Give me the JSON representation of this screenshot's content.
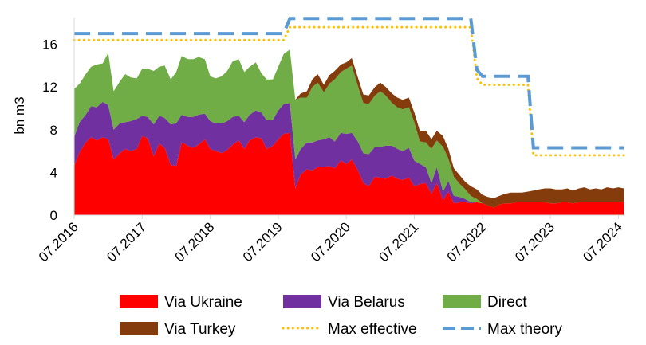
{
  "chart_data": {
    "type": "area",
    "title": "",
    "xlabel": "",
    "ylabel": "bn m3",
    "ylim": [
      0,
      18.5
    ],
    "yticks": [
      0,
      4,
      8,
      12,
      16
    ],
    "xlim": [
      2016.5,
      2024.6
    ],
    "xticks": [
      {
        "value": 2016.5,
        "label": "07.2016"
      },
      {
        "value": 2017.5,
        "label": "07.2017"
      },
      {
        "value": 2018.5,
        "label": "07.2018"
      },
      {
        "value": 2019.5,
        "label": "07.2019"
      },
      {
        "value": 2020.5,
        "label": "07.2020"
      },
      {
        "value": 2021.5,
        "label": "07.2021"
      },
      {
        "value": 2022.5,
        "label": "07.2022"
      },
      {
        "value": 2023.5,
        "label": "07.2023"
      },
      {
        "value": 2024.5,
        "label": "07.2024"
      }
    ],
    "grid": false,
    "legend_position": "bottom",
    "x": [
      2016.5,
      2016.58,
      2016.67,
      2016.75,
      2016.83,
      2016.92,
      2017.0,
      2017.08,
      2017.17,
      2017.25,
      2017.33,
      2017.42,
      2017.5,
      2017.58,
      2017.67,
      2017.75,
      2017.83,
      2017.92,
      2018.0,
      2018.08,
      2018.17,
      2018.25,
      2018.33,
      2018.42,
      2018.5,
      2018.58,
      2018.67,
      2018.75,
      2018.83,
      2018.92,
      2019.0,
      2019.08,
      2019.17,
      2019.25,
      2019.33,
      2019.42,
      2019.5,
      2019.58,
      2019.67,
      2019.75,
      2019.83,
      2019.92,
      2020.0,
      2020.08,
      2020.17,
      2020.25,
      2020.33,
      2020.42,
      2020.5,
      2020.58,
      2020.67,
      2020.75,
      2020.83,
      2020.92,
      2021.0,
      2021.08,
      2021.17,
      2021.25,
      2021.33,
      2021.42,
      2021.5,
      2021.58,
      2021.67,
      2021.75,
      2021.83,
      2021.92,
      2022.0,
      2022.08,
      2022.17,
      2022.25,
      2022.33,
      2022.42,
      2022.5,
      2022.58,
      2022.67,
      2022.75,
      2022.83,
      2022.92,
      2023.0,
      2023.08,
      2023.17,
      2023.25,
      2023.33,
      2023.42,
      2023.5,
      2023.58,
      2023.67,
      2023.75,
      2023.83,
      2023.92,
      2024.0,
      2024.08,
      2024.17,
      2024.25,
      2024.33,
      2024.42,
      2024.5,
      2024.58
    ],
    "series": [
      {
        "name": "Via Ukraine",
        "color": "#ff0000",
        "values": [
          4.6,
          5.9,
          6.8,
          7.3,
          7.0,
          7.3,
          7.1,
          5.2,
          5.8,
          6.2,
          6.0,
          6.2,
          7.4,
          7.2,
          5.5,
          6.7,
          6.3,
          4.7,
          4.6,
          6.8,
          6.5,
          6.3,
          6.6,
          7.1,
          6.2,
          6.0,
          5.8,
          6.1,
          6.6,
          7.0,
          6.2,
          7.0,
          7.3,
          7.2,
          6.2,
          6.5,
          7.1,
          7.6,
          7.7,
          2.5,
          3.8,
          4.3,
          4.2,
          4.5,
          4.5,
          4.6,
          4.4,
          5.1,
          4.8,
          5.2,
          4.2,
          3.0,
          2.7,
          3.6,
          3.5,
          3.4,
          3.7,
          3.4,
          3.3,
          3.5,
          2.7,
          2.9,
          3.0,
          2.0,
          3.0,
          1.4,
          2.2,
          1.1,
          1.2,
          1.2,
          1.1,
          1.2,
          1.1,
          0.9,
          0.7,
          1.0,
          1.1,
          1.1,
          1.2,
          1.2,
          1.2,
          1.2,
          1.2,
          1.2,
          1.1,
          1.1,
          1.2,
          1.2,
          1.1,
          1.2,
          1.2,
          1.2,
          1.2,
          1.2,
          1.2,
          1.2,
          1.2,
          1.2
        ]
      },
      {
        "name": "Via Belarus",
        "color": "#7030a0",
        "values": [
          2.7,
          2.8,
          2.6,
          2.9,
          3.1,
          3.3,
          3.2,
          2.8,
          2.8,
          2.5,
          2.8,
          2.8,
          1.9,
          2.0,
          3.0,
          2.6,
          2.8,
          3.8,
          4.0,
          2.6,
          2.7,
          2.9,
          2.8,
          2.4,
          2.6,
          2.6,
          2.8,
          2.7,
          2.6,
          2.3,
          2.5,
          2.4,
          2.5,
          2.4,
          2.7,
          2.4,
          2.7,
          2.8,
          2.8,
          2.7,
          2.4,
          2.5,
          2.6,
          2.5,
          2.6,
          2.7,
          2.5,
          2.6,
          2.8,
          2.5,
          2.7,
          2.8,
          3.0,
          2.8,
          2.9,
          3.1,
          2.8,
          2.8,
          2.7,
          2.8,
          2.4,
          1.9,
          1.5,
          1.0,
          1.5,
          0.8,
          1.0,
          0.7,
          0.5,
          0.3,
          0.1,
          0.0,
          0.0,
          0.0,
          0.0,
          0.0,
          0.0,
          0.0,
          0.0,
          0.0,
          0.0,
          0.0,
          0.0,
          0.0,
          0.0,
          0.0,
          0.0,
          0.0,
          0.0,
          0.0,
          0.0,
          0.0,
          0.0,
          0.0,
          0.0,
          0.0,
          0.0,
          0.0
        ]
      },
      {
        "name": "Direct",
        "color": "#70ad47",
        "values": [
          4.5,
          3.6,
          3.8,
          3.7,
          4.0,
          3.6,
          4.9,
          3.6,
          3.9,
          4.5,
          4.1,
          3.8,
          4.4,
          4.5,
          5.0,
          4.6,
          4.9,
          4.2,
          4.8,
          5.5,
          5.4,
          5.4,
          5.4,
          5.1,
          4.2,
          4.2,
          4.4,
          4.7,
          5.2,
          5.3,
          4.7,
          4.5,
          4.5,
          3.7,
          3.8,
          3.8,
          4.1,
          4.7,
          5.0,
          5.6,
          4.8,
          4.2,
          5.2,
          5.4,
          4.4,
          5.0,
          5.8,
          5.7,
          6.1,
          6.3,
          5.2,
          4.7,
          4.7,
          4.8,
          5.2,
          4.7,
          4.0,
          3.9,
          3.9,
          3.8,
          3.6,
          2.1,
          2.3,
          3.2,
          2.5,
          4.2,
          2.1,
          1.8,
          1.2,
          0.9,
          0.6,
          0.3,
          0.0,
          0.0,
          0.0,
          0.0,
          0.0,
          0.0,
          0.0,
          0.0,
          0.0,
          0.0,
          0.0,
          0.0,
          0.0,
          0.0,
          0.0,
          0.0,
          0.0,
          0.0,
          0.0,
          0.0,
          0.0,
          0.0,
          0.0,
          0.0,
          0.0,
          0.0
        ]
      },
      {
        "name": "Via Turkey",
        "color": "#843c0c",
        "values": [
          0.0,
          0.0,
          0.0,
          0.0,
          0.0,
          0.0,
          0.0,
          0.0,
          0.0,
          0.0,
          0.0,
          0.0,
          0.0,
          0.0,
          0.0,
          0.0,
          0.0,
          0.0,
          0.0,
          0.0,
          0.0,
          0.0,
          0.0,
          0.0,
          0.0,
          0.0,
          0.0,
          0.0,
          0.0,
          0.0,
          0.0,
          0.0,
          0.0,
          0.0,
          0.0,
          0.0,
          0.0,
          0.0,
          0.0,
          0.0,
          0.4,
          0.6,
          0.7,
          0.8,
          0.7,
          0.8,
          0.8,
          0.7,
          0.6,
          0.7,
          0.8,
          0.8,
          0.8,
          0.8,
          0.8,
          0.8,
          0.9,
          0.9,
          0.9,
          0.9,
          0.9,
          1.0,
          1.1,
          0.9,
          0.9,
          1.0,
          0.9,
          0.8,
          0.8,
          0.7,
          0.9,
          0.9,
          0.8,
          0.8,
          0.9,
          0.8,
          0.9,
          1.0,
          0.9,
          0.9,
          1.0,
          1.1,
          1.2,
          1.3,
          1.4,
          1.3,
          1.2,
          1.3,
          1.2,
          1.3,
          1.4,
          1.2,
          1.3,
          1.2,
          1.4,
          1.3,
          1.4,
          1.3
        ]
      },
      {
        "name": "Max effective",
        "color": "#ffc000",
        "style": "dotted",
        "values": [
          16.4,
          16.4,
          16.4,
          16.4,
          16.4,
          16.4,
          16.4,
          16.4,
          16.4,
          16.4,
          16.4,
          16.4,
          16.4,
          16.4,
          16.4,
          16.4,
          16.4,
          16.4,
          16.4,
          16.4,
          16.4,
          16.4,
          16.4,
          16.4,
          16.4,
          16.4,
          16.4,
          16.4,
          16.4,
          16.4,
          16.4,
          16.4,
          16.4,
          16.4,
          16.4,
          16.4,
          16.4,
          16.4,
          17.6,
          17.6,
          17.6,
          17.6,
          17.6,
          17.6,
          17.6,
          17.6,
          17.6,
          17.6,
          17.6,
          17.6,
          17.6,
          17.6,
          17.6,
          17.6,
          17.6,
          17.6,
          17.6,
          17.6,
          17.6,
          17.6,
          17.6,
          17.6,
          17.6,
          17.6,
          17.6,
          17.6,
          17.6,
          17.6,
          17.6,
          17.6,
          17.6,
          12.8,
          12.2,
          12.2,
          12.2,
          12.2,
          12.2,
          12.2,
          12.2,
          12.2,
          12.2,
          5.6,
          5.6,
          5.6,
          5.6,
          5.6,
          5.6,
          5.6,
          5.6,
          5.6,
          5.6,
          5.6,
          5.6,
          5.6,
          5.6,
          5.6,
          5.6,
          5.6
        ]
      },
      {
        "name": "Max theory",
        "color": "#5b9bd5",
        "style": "dashed",
        "values": [
          17.0,
          17.0,
          17.0,
          17.0,
          17.0,
          17.0,
          17.0,
          17.0,
          17.0,
          17.0,
          17.0,
          17.0,
          17.0,
          17.0,
          17.0,
          17.0,
          17.0,
          17.0,
          17.0,
          17.0,
          17.0,
          17.0,
          17.0,
          17.0,
          17.0,
          17.0,
          17.0,
          17.0,
          17.0,
          17.0,
          17.0,
          17.0,
          17.0,
          17.0,
          17.0,
          17.0,
          17.0,
          17.0,
          18.4,
          18.4,
          18.4,
          18.4,
          18.4,
          18.4,
          18.4,
          18.4,
          18.4,
          18.4,
          18.4,
          18.4,
          18.4,
          18.4,
          18.4,
          18.4,
          18.4,
          18.4,
          18.4,
          18.4,
          18.4,
          18.4,
          18.4,
          18.4,
          18.4,
          18.4,
          18.4,
          18.4,
          18.4,
          18.4,
          18.4,
          18.4,
          18.4,
          13.6,
          13.0,
          13.0,
          13.0,
          13.0,
          13.0,
          13.0,
          13.0,
          13.0,
          13.0,
          6.3,
          6.3,
          6.3,
          6.3,
          6.3,
          6.3,
          6.3,
          6.3,
          6.3,
          6.3,
          6.3,
          6.3,
          6.3,
          6.3,
          6.3,
          6.3,
          6.3
        ]
      }
    ]
  }
}
